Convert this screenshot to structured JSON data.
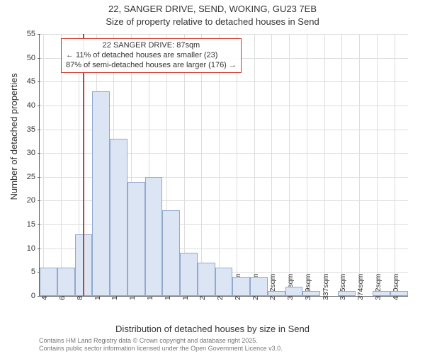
{
  "title_line1": "22, SANGER DRIVE, SEND, WOKING, GU23 7EB",
  "title_line2": "Size of property relative to detached houses in Send",
  "ylabel": "Number of detached properties",
  "xlabel": "Distribution of detached houses by size in Send",
  "credits_line1": "Contains HM Land Registry data © Crown copyright and database right 2025.",
  "credits_line2": "Contains public sector information licensed under the Open Government Licence v3.0.",
  "histogram": {
    "type": "histogram",
    "ylim": [
      0,
      55
    ],
    "ytick_step": 5,
    "bar_fill": "#dbe5f4",
    "bar_border": "#92a8cd",
    "grid_color": "#dddddd",
    "background": "#ffffff",
    "ref_line_color": "#d43a2f",
    "ref_line_sqm": 87,
    "xtick_start": 45,
    "xtick_step": 18.25,
    "xtick_count": 21,
    "xtick_suffix": "sqm",
    "bin_start": 41,
    "bin_width": 18.25,
    "values": [
      6,
      6,
      13,
      43,
      33,
      24,
      25,
      18,
      9,
      7,
      6,
      4,
      4,
      1,
      2,
      1,
      0,
      1,
      0,
      1,
      1
    ],
    "title_fontsize": 13,
    "label_fontsize": 13,
    "tick_fontsize": 11
  },
  "annotation": {
    "line1": "22 SANGER DRIVE: 87sqm",
    "line2": "← 11% of detached houses are smaller (23)",
    "line3": "87% of semi-detached houses are larger (176) →",
    "border_color": "#d43a2f",
    "fontsize": 11
  }
}
